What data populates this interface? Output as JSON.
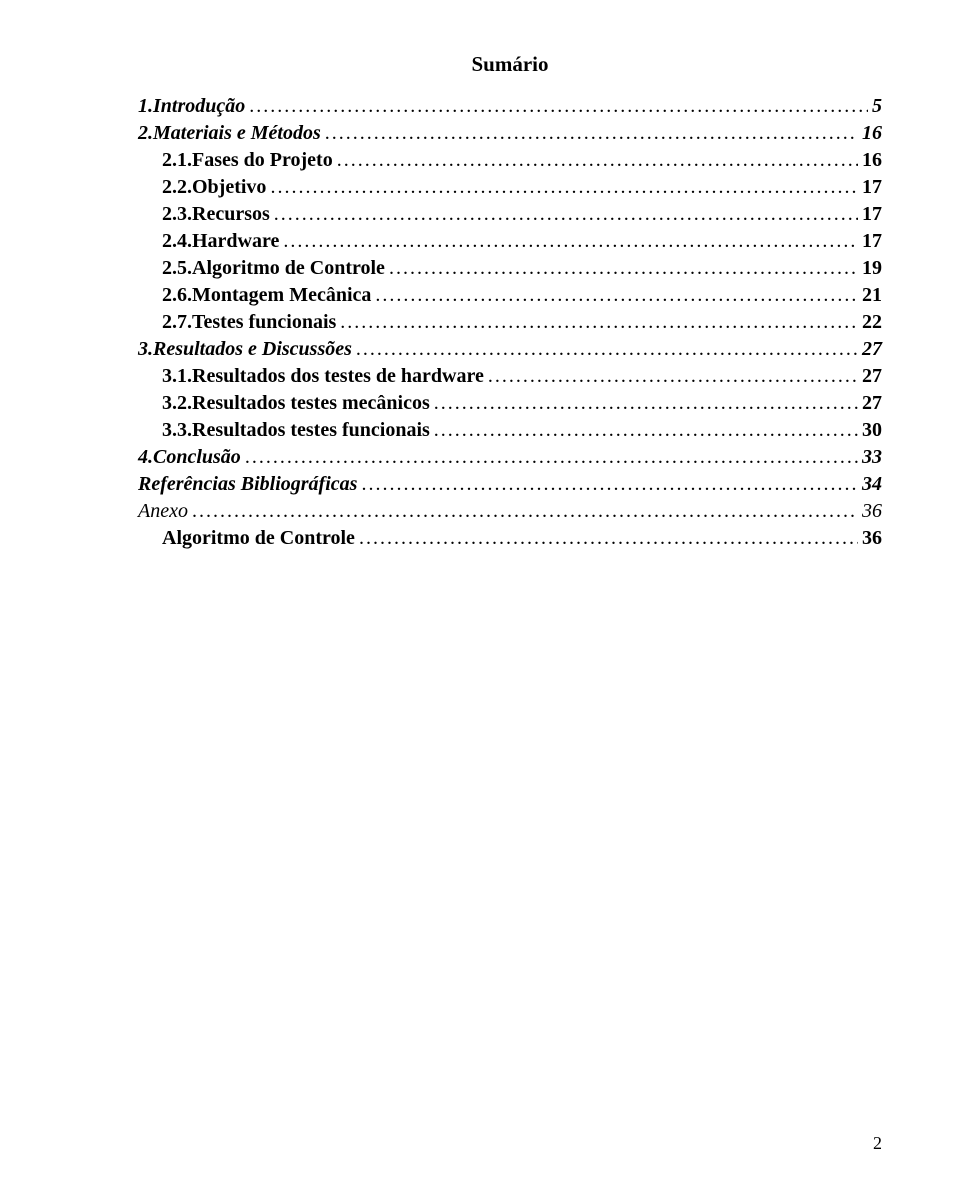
{
  "title": "Sumário",
  "page_number": "2",
  "text_color": "#000000",
  "background_color": "#ffffff",
  "font_family": "Times New Roman",
  "base_font_size_pt": 15,
  "entries": [
    {
      "label": "1.Introdução",
      "page": "5",
      "style": "bolditalic",
      "indent": 0,
      "space_before_page": true
    },
    {
      "label": "2.Materiais e Métodos",
      "page": "16",
      "style": "bolditalic",
      "indent": 0,
      "space_before_page": true
    },
    {
      "label": "2.1.Fases do Projeto",
      "page": "16",
      "style": "bold",
      "indent": 1,
      "space_before_page": false
    },
    {
      "label": "2.2.Objetivo",
      "page": "17",
      "style": "bold",
      "indent": 1,
      "space_before_page": false
    },
    {
      "label": "2.3.Recursos",
      "page": "17",
      "style": "bold",
      "indent": 1,
      "space_before_page": false
    },
    {
      "label": "2.4.Hardware",
      "page": "17",
      "style": "bold",
      "indent": 1,
      "space_before_page": false
    },
    {
      "label": "2.5.Algoritmo de Controle",
      "page": "19",
      "style": "bold",
      "indent": 1,
      "space_before_page": false
    },
    {
      "label": "2.6.Montagem Mecânica",
      "page": "21",
      "style": "bold",
      "indent": 1,
      "space_before_page": false
    },
    {
      "label": "2.7.Testes funcionais",
      "page": "22",
      "style": "bold",
      "indent": 1,
      "space_before_page": false
    },
    {
      "label": "3.Resultados e Discussões",
      "page": "27",
      "style": "bolditalic",
      "indent": 0,
      "space_before_page": true
    },
    {
      "label": "3.1.Resultados dos testes de hardware",
      "page": "27",
      "style": "bold",
      "indent": 1,
      "space_before_page": false
    },
    {
      "label": "3.2.Resultados testes mecânicos",
      "page": "27",
      "style": "bold",
      "indent": 1,
      "space_before_page": false
    },
    {
      "label": "3.3.Resultados testes funcionais",
      "page": "30",
      "style": "bold",
      "indent": 1,
      "space_before_page": false
    },
    {
      "label": "4.Conclusão",
      "page": "33",
      "style": "bolditalic",
      "indent": 0,
      "space_before_page": true
    },
    {
      "label": "Referências Bibliográficas",
      "page": "34",
      "style": "bolditalic",
      "indent": 0,
      "space_before_page": true
    },
    {
      "label": "Anexo",
      "page": "36",
      "style": "italic",
      "indent": 0,
      "space_before_page": true
    },
    {
      "label": "Algoritmo de Controle",
      "page": "36",
      "style": "bold",
      "indent": 1,
      "space_before_page": false
    }
  ]
}
